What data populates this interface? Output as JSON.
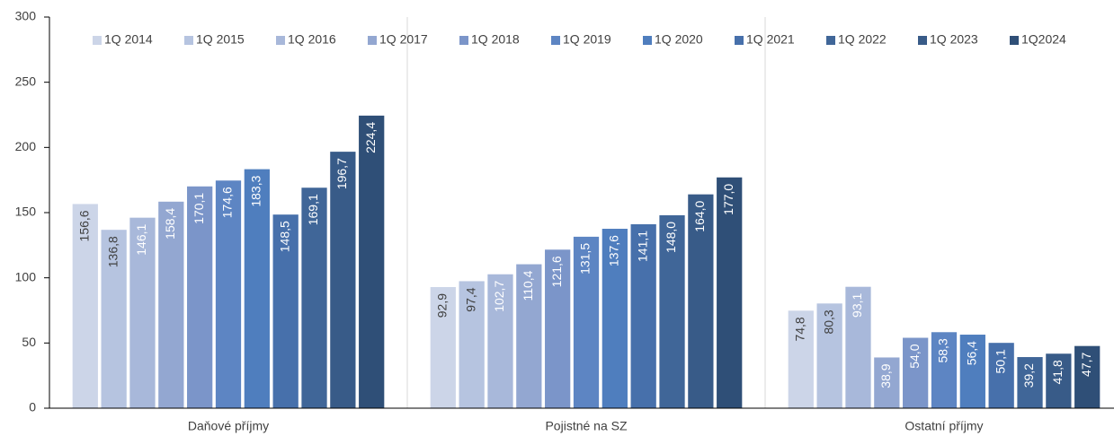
{
  "chart_data": {
    "type": "bar",
    "categories": [
      "Daňové příjmy",
      "Pojistné na SZ",
      "Ostatní příjmy"
    ],
    "series": [
      {
        "name": "1Q 2014",
        "color": "#ccd5e8",
        "values": [
          156.6,
          92.9,
          74.8
        ],
        "value_labels": [
          "156,6",
          "92,9",
          "74,8"
        ]
      },
      {
        "name": "1Q 2015",
        "color": "#b6c4e0",
        "values": [
          136.8,
          97.4,
          80.3
        ],
        "value_labels": [
          "136,8",
          "97,4",
          "80,3"
        ]
      },
      {
        "name": "1Q 2016",
        "color": "#a8b8da",
        "values": [
          146.1,
          102.7,
          93.1
        ],
        "value_labels": [
          "146,1",
          "102,7",
          "93,1"
        ]
      },
      {
        "name": "1Q 2017",
        "color": "#93a7d1",
        "values": [
          158.4,
          110.4,
          38.9
        ],
        "value_labels": [
          "158,4",
          "110,4",
          "38,9"
        ]
      },
      {
        "name": "1Q 2018",
        "color": "#7b95c9",
        "values": [
          170.1,
          121.6,
          54.0
        ],
        "value_labels": [
          "170,1",
          "121,6",
          "54,0"
        ]
      },
      {
        "name": "1Q 2019",
        "color": "#5d85c3",
        "values": [
          174.6,
          131.5,
          58.3
        ],
        "value_labels": [
          "174,6",
          "131,5",
          "58,3"
        ]
      },
      {
        "name": "1Q 2020",
        "color": "#4f7ebe",
        "values": [
          183.3,
          137.6,
          56.4
        ],
        "value_labels": [
          "183,3",
          "137,6",
          "56,4"
        ]
      },
      {
        "name": "1Q 2021",
        "color": "#4770ab",
        "values": [
          148.5,
          141.1,
          50.1
        ],
        "value_labels": [
          "148,5",
          "141,1",
          "50,1"
        ]
      },
      {
        "name": "1Q 2022",
        "color": "#406698",
        "values": [
          169.1,
          148.0,
          39.2
        ],
        "value_labels": [
          "169,1",
          "148,0",
          "39,2"
        ]
      },
      {
        "name": "1Q 2023",
        "color": "#385b88",
        "values": [
          196.7,
          164.0,
          41.8
        ],
        "value_labels": [
          "196,7",
          "164,0",
          "41,8"
        ]
      },
      {
        "name": "1Q2024",
        "color": "#2f4f77",
        "values": [
          224.4,
          177.0,
          47.7
        ],
        "value_labels": [
          "224,4",
          "177,0",
          "47,7"
        ]
      }
    ],
    "ylim": [
      0,
      300
    ],
    "yticks": [
      0,
      50,
      100,
      150,
      200,
      250,
      300
    ],
    "legend": "top"
  }
}
